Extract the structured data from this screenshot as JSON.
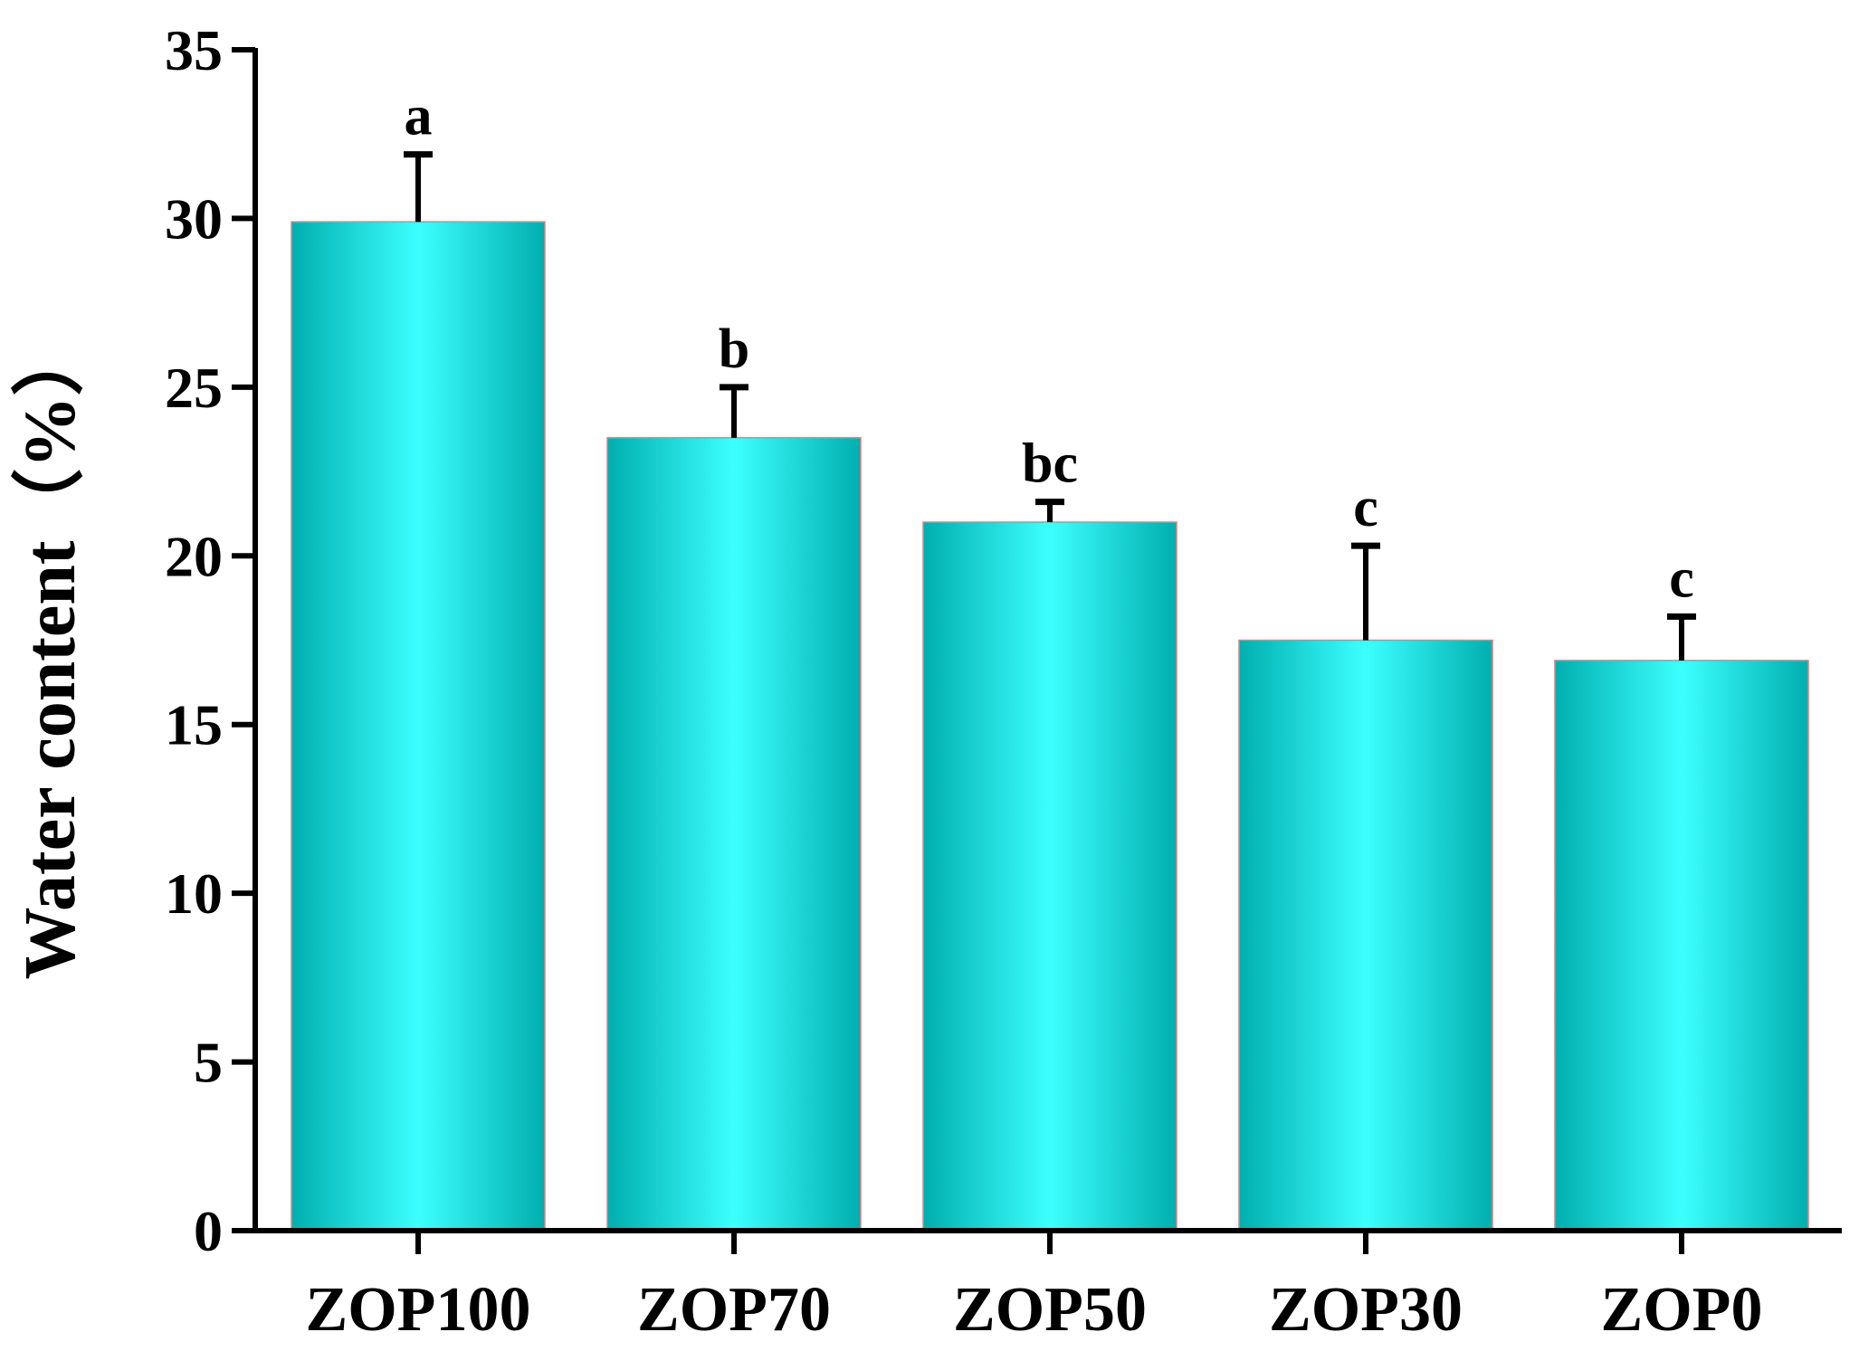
{
  "chart_data": {
    "type": "bar",
    "title": "",
    "xlabel": "",
    "ylabel": "Water content（%）",
    "ylim": [
      0,
      35
    ],
    "yticks": [
      0,
      5,
      10,
      15,
      20,
      25,
      30,
      35
    ],
    "grid": false,
    "legend": "none",
    "categories": [
      "ZOP100",
      "ZOP70",
      "ZOP50",
      "ZOP30",
      "ZOP0"
    ],
    "values": [
      29.9,
      23.5,
      21.0,
      17.5,
      16.9
    ],
    "error_upper": [
      2.0,
      1.5,
      0.6,
      2.8,
      1.3
    ],
    "significance_letters": [
      "a",
      "b",
      "bc",
      "c",
      "c"
    ],
    "colors": {
      "bar_edge_dark": "#00AFAF",
      "bar_center_light": "#3DFFFF",
      "bar_outline": "#E08080",
      "axis": "#000000"
    }
  }
}
